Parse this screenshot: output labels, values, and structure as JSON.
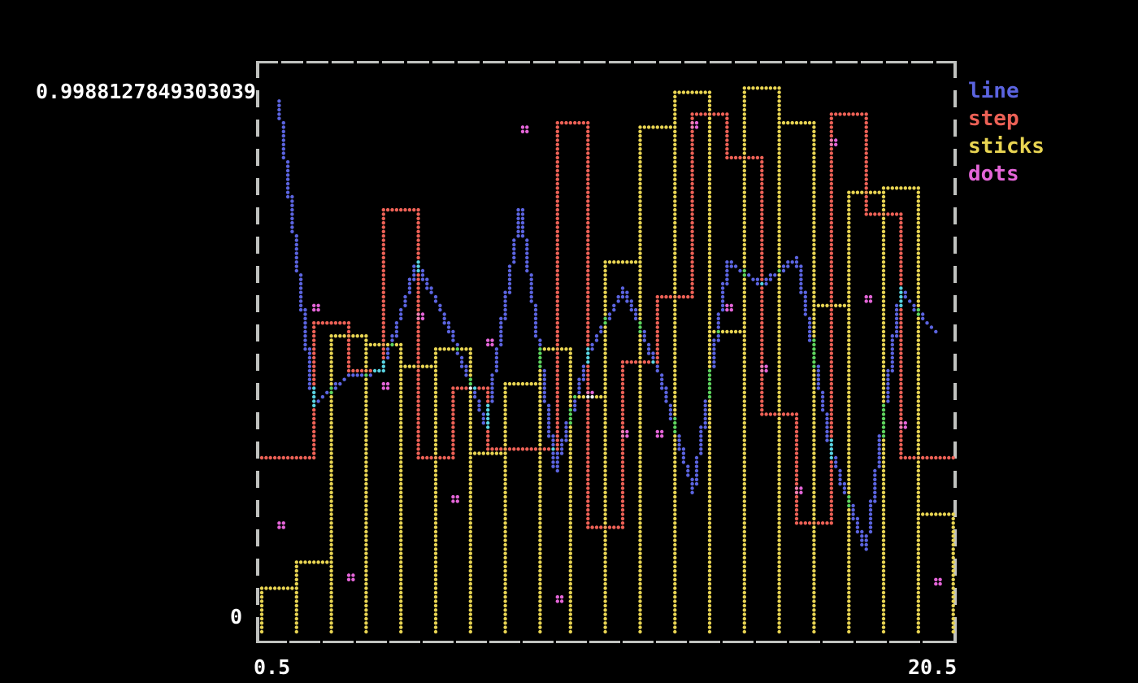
{
  "y_axis": {
    "max_label": "0.9988127849303039",
    "min_label": "0"
  },
  "x_axis": {
    "min_label": "0.5",
    "max_label": "20.5"
  },
  "legend": {
    "items": [
      {
        "label": "line",
        "color": "#5b64e0"
      },
      {
        "label": "step",
        "color": "#ed6156"
      },
      {
        "label": "sticks",
        "color": "#e8d452"
      },
      {
        "label": "dots",
        "color": "#e465d8"
      }
    ]
  },
  "chart_data": {
    "type": "mixed",
    "description": "Terminal dot-matrix plot with four random series drawn in different styles",
    "background": "#000000",
    "border_color": "#c0c2bf",
    "text_color": "#ffffff",
    "grid": false,
    "legend_position": "top-right",
    "x_range": [
      0.5,
      20.5
    ],
    "y_range": [
      0,
      0.9988127849303039
    ],
    "x": [
      1,
      2,
      3,
      4,
      5,
      6,
      7,
      8,
      9,
      10,
      11,
      12,
      13,
      14,
      15,
      16,
      17,
      18,
      19,
      20
    ],
    "series": [
      {
        "name": "line",
        "type": "line",
        "color": "#5b64e0",
        "values": [
          0.98,
          0.42,
          0.47,
          0.48,
          0.68,
          0.55,
          0.38,
          0.78,
          0.3,
          0.52,
          0.63,
          0.48,
          0.26,
          0.68,
          0.64,
          0.69,
          0.33,
          0.15,
          0.63,
          0.55
        ]
      },
      {
        "name": "step",
        "type": "step",
        "color": "#ed6156",
        "values": [
          0.32,
          0.57,
          0.48,
          0.78,
          0.32,
          0.45,
          0.34,
          0.34,
          0.94,
          0.19,
          0.5,
          0.62,
          0.95,
          0.87,
          0.4,
          0.2,
          0.95,
          0.77,
          0.32,
          0.32
        ]
      },
      {
        "name": "sticks",
        "type": "sticks",
        "color": "#e8d452",
        "values": [
          0.08,
          0.13,
          0.545,
          0.53,
          0.49,
          0.52,
          0.33,
          0.46,
          0.52,
          0.43,
          0.68,
          0.93,
          0.99,
          0.55,
          0.9988127849303039,
          0.937,
          0.6,
          0.81,
          0.82,
          0.22
        ]
      },
      {
        "name": "dots",
        "type": "dots",
        "color": "#e465d8",
        "values": [
          0.19,
          0.59,
          0.1,
          0.45,
          0.58,
          0.24,
          0.53,
          0.92,
          0.06,
          0.43,
          0.36,
          0.36,
          0.93,
          0.59,
          0.48,
          0.26,
          0.9,
          0.61,
          0.38,
          0.09
        ]
      }
    ],
    "blend_colors": {
      "line+sticks": "#5ed45e",
      "line+step": "#59d4e2",
      "dots+line": "#8f6ce8",
      "dots+step": "#f07fb0",
      "dots+sticks": "#f2f2f2",
      "step+sticks": "#f09a55",
      "multi": "#f2f2f2"
    }
  }
}
